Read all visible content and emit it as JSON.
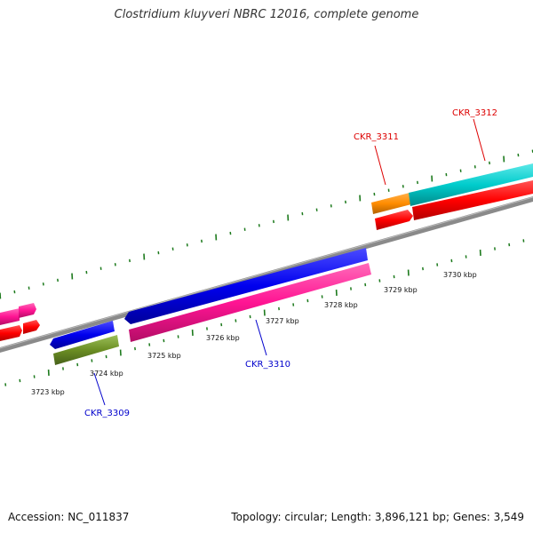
{
  "title": "Clostridium kluyveri NBRC 12016, complete genome",
  "footer": {
    "accession": "Accession: NC_011837",
    "topology": "Topology: circular; Length: 3,896,121 bp; Genes: 3,549"
  },
  "colors": {
    "backbone": "#8a8a8a",
    "tick": "#1d7a1d",
    "red": "#ff0000",
    "magenta": "#ff1493",
    "blue": "#0000ee",
    "olive": "#6b8e23",
    "orange": "#ff8c00",
    "cyan": "#00cccc",
    "label_red": "#dd0000",
    "label_blue": "#0000cc"
  },
  "scale_labels": [
    {
      "kbp": 3723,
      "text": "3723 kbp"
    },
    {
      "kbp": 3724,
      "text": "3724 kbp"
    },
    {
      "kbp": 3725,
      "text": "3725 kbp"
    },
    {
      "kbp": 3726,
      "text": "3726 kbp"
    },
    {
      "kbp": 3727,
      "text": "3727 kbp"
    },
    {
      "kbp": 3728,
      "text": "3728 kbp"
    },
    {
      "kbp": 3729,
      "text": "3729 kbp"
    },
    {
      "kbp": 3730,
      "text": "3730 kbp"
    }
  ],
  "gene_labels": [
    {
      "id": "ckr-3309",
      "text": "CKR_3309",
      "color": "label_blue"
    },
    {
      "id": "ckr-3310",
      "text": "CKR_3310",
      "color": "label_blue"
    },
    {
      "id": "ckr-3311",
      "text": "CKR_3311",
      "color": "label_red"
    },
    {
      "id": "ckr-3312",
      "text": "CKR_3312",
      "color": "label_red"
    }
  ]
}
